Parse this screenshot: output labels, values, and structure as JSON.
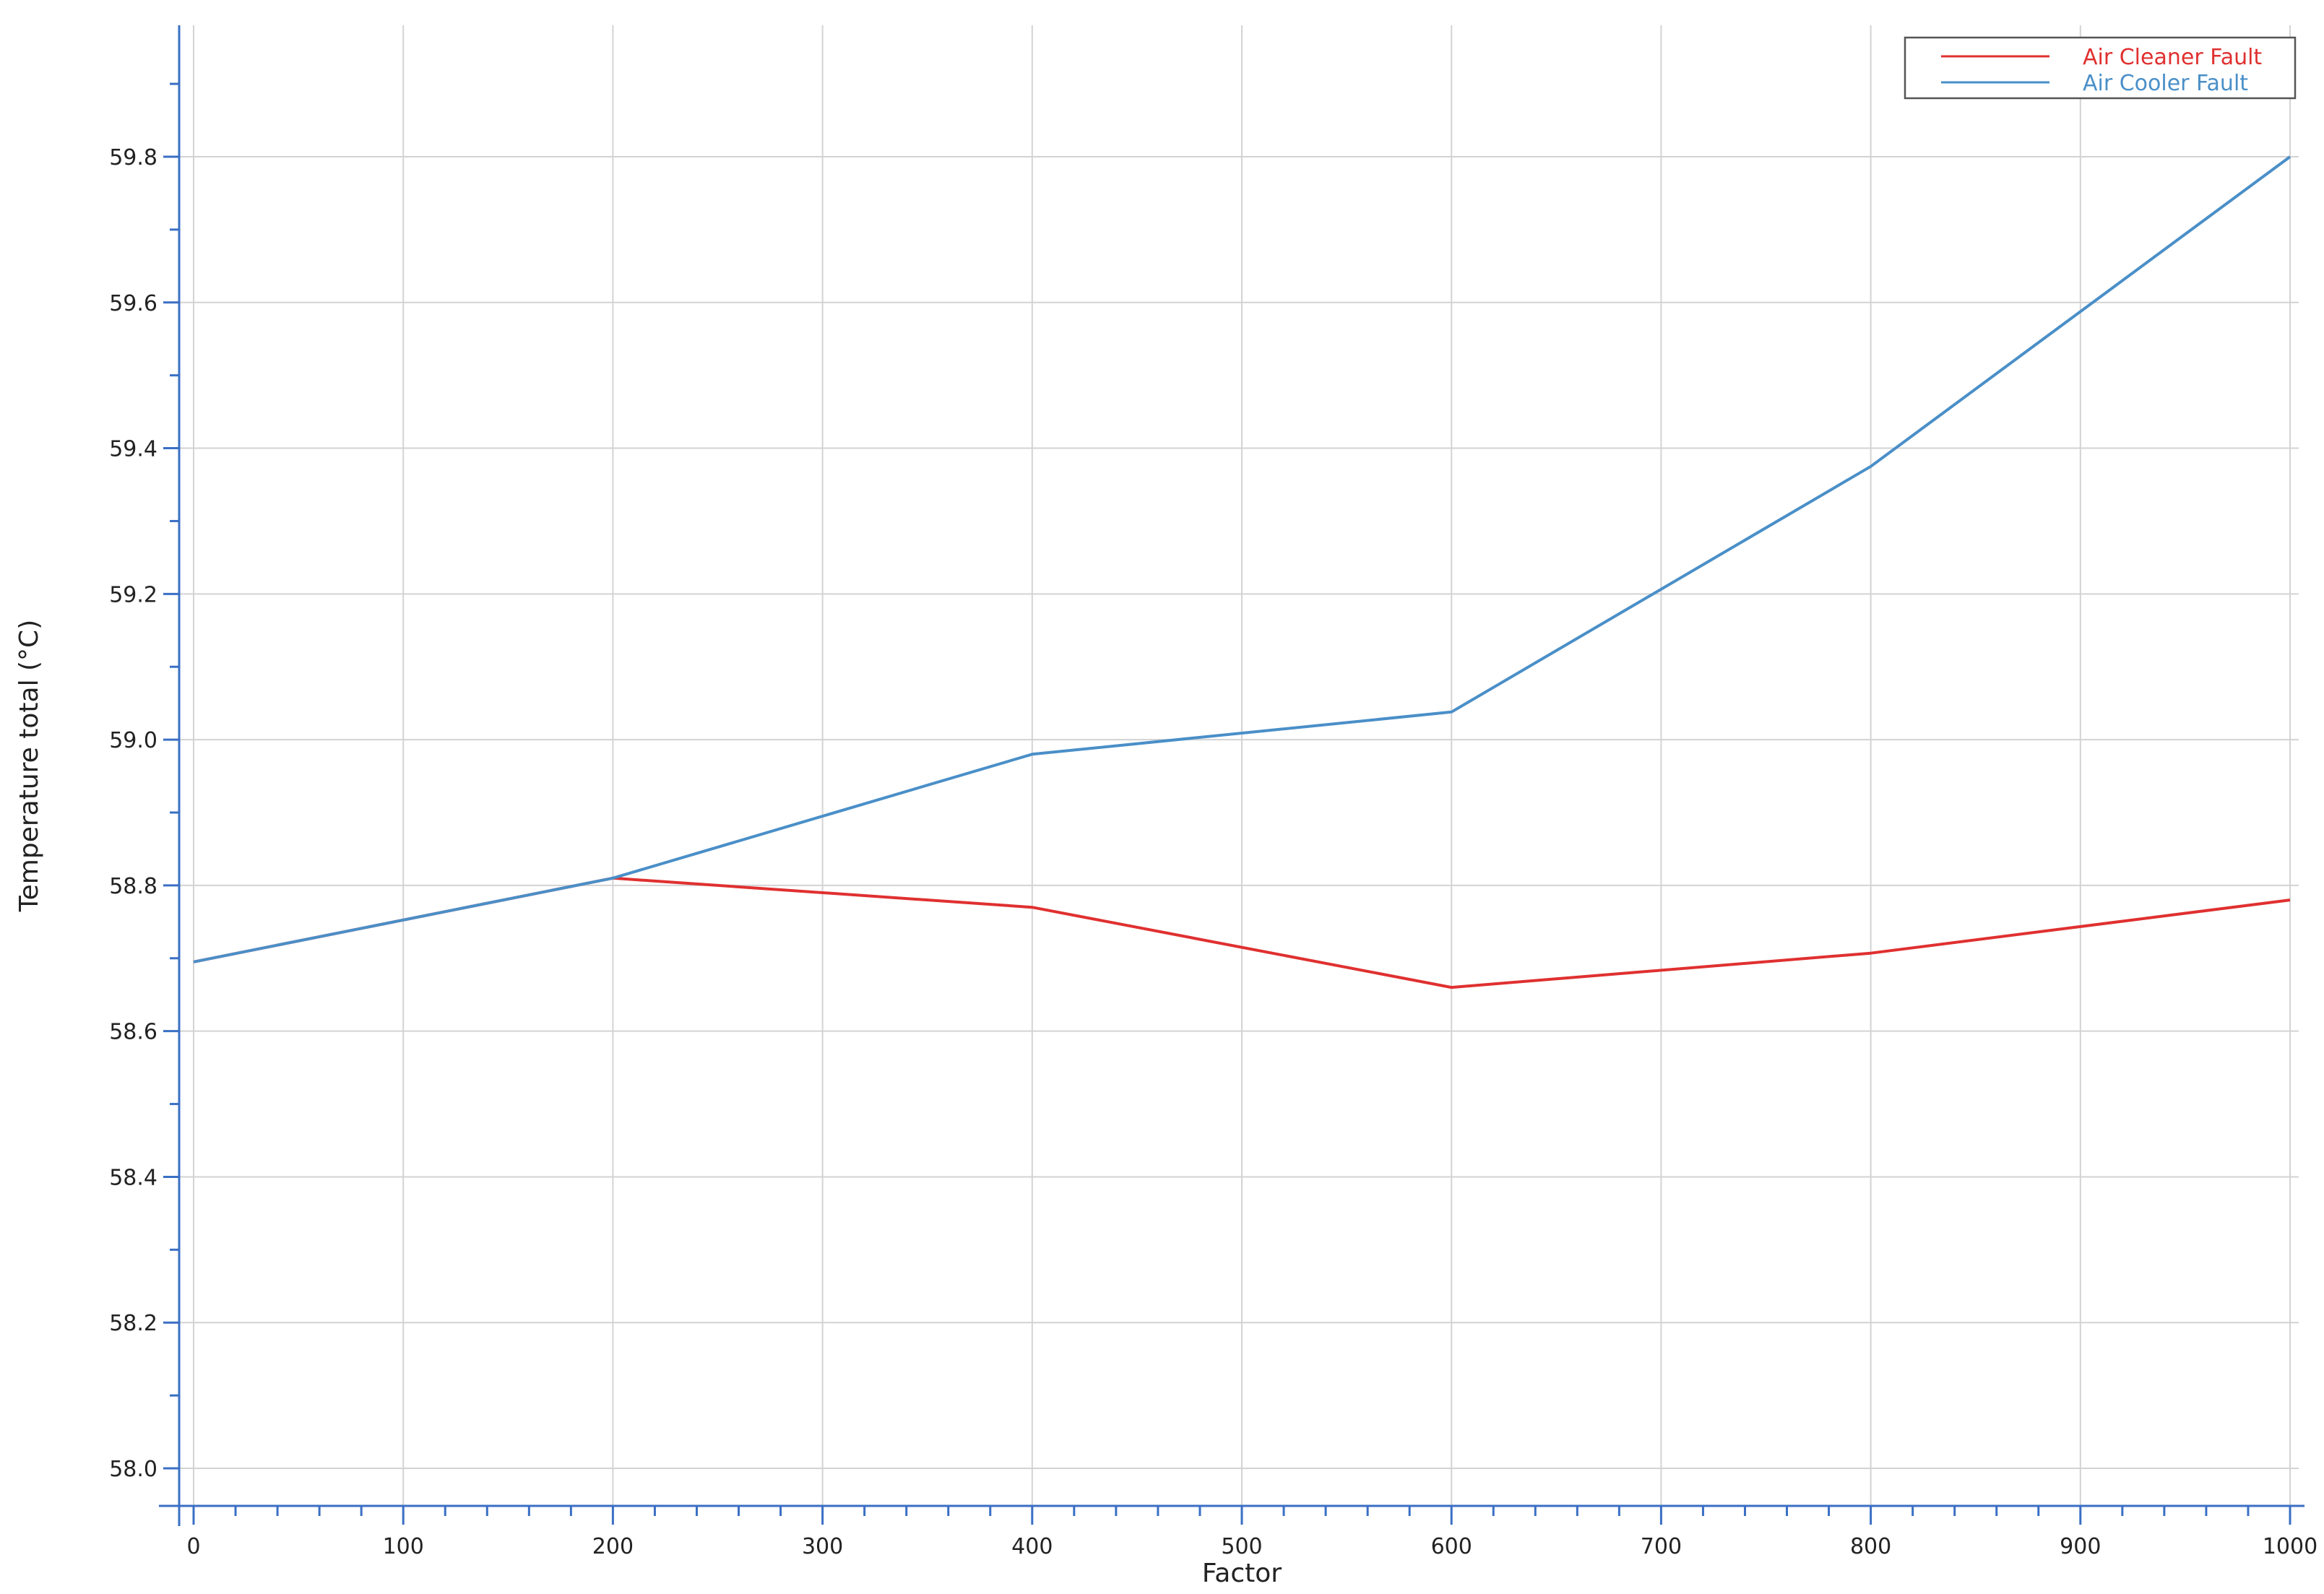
{
  "chart_data": {
    "type": "line",
    "title": "",
    "xlabel": "Factor",
    "ylabel": "Temperature total (°C)",
    "x": [
      0,
      200,
      400,
      600,
      800,
      1000
    ],
    "xlim": [
      0,
      1000
    ],
    "ylim": [
      57.95,
      59.98
    ],
    "x_ticks": [
      0,
      100,
      200,
      300,
      400,
      500,
      600,
      700,
      800,
      900,
      1000
    ],
    "x_tick_labels": [
      "0",
      "100",
      "200",
      "300",
      "400",
      "500",
      "600",
      "700",
      "800",
      "900",
      "1000"
    ],
    "y_ticks": [
      58.0,
      58.2,
      58.4,
      58.6,
      58.8,
      59.0,
      59.2,
      59.4,
      59.6,
      59.8
    ],
    "y_tick_labels": [
      "58.0",
      "58.2",
      "58.4",
      "58.6",
      "58.8",
      "59.0",
      "59.2",
      "59.4",
      "59.6",
      "59.8"
    ],
    "grid": true,
    "legend_position": "top-right",
    "series": [
      {
        "name": "Air Cleaner Fault",
        "color": "#e03030",
        "values": [
          58.695,
          58.81,
          58.77,
          58.66,
          58.707,
          58.78
        ]
      },
      {
        "name": "Air Cooler Fault",
        "color": "#4a8fc8",
        "values": [
          58.695,
          58.81,
          58.98,
          59.038,
          59.375,
          59.8
        ]
      }
    ]
  }
}
